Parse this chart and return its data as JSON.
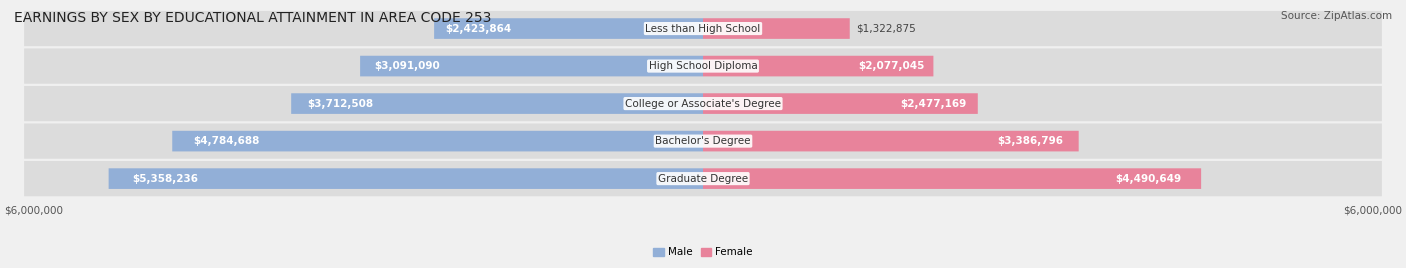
{
  "title": "EARNINGS BY SEX BY EDUCATIONAL ATTAINMENT IN AREA CODE 253",
  "source": "Source: ZipAtlas.com",
  "categories": [
    "Less than High School",
    "High School Diploma",
    "College or Associate's Degree",
    "Bachelor's Degree",
    "Graduate Degree"
  ],
  "male_values": [
    2423864,
    3091090,
    3712508,
    4784688,
    5358236
  ],
  "female_values": [
    1322875,
    2077045,
    2477169,
    3386796,
    4490649
  ],
  "male_color": "#92afd7",
  "female_color": "#e8839b",
  "male_label": "Male",
  "female_label": "Female",
  "x_max": 6000000,
  "background_color": "#f0f0f0",
  "bar_background": "#e0e0e0",
  "title_fontsize": 10,
  "source_fontsize": 8,
  "label_fontsize": 7.5,
  "axis_label": "$6,000,000"
}
